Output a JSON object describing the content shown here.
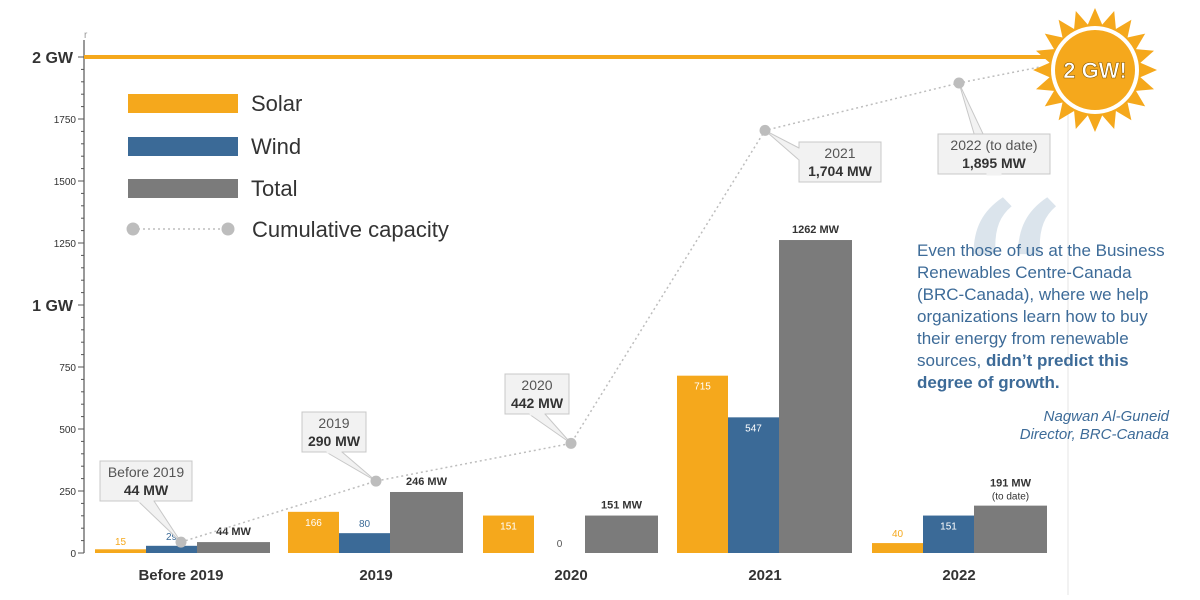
{
  "chart_data": {
    "type": "bar",
    "categories": [
      "Before 2019",
      "2019",
      "2020",
      "2021",
      "2022"
    ],
    "series": [
      {
        "name": "Solar",
        "color": "#f5a81c",
        "values": [
          15,
          166,
          151,
          715,
          40
        ]
      },
      {
        "name": "Wind",
        "color": "#3b6a97",
        "values": [
          29,
          80,
          0,
          547,
          151
        ]
      },
      {
        "name": "Total",
        "color": "#7b7b7b",
        "values": [
          44,
          246,
          151,
          1262,
          191
        ]
      }
    ],
    "bar_labels": {
      "Solar": [
        "15",
        "166",
        "151",
        "715",
        "40"
      ],
      "Wind": [
        "29",
        "80",
        "0",
        "547",
        "151"
      ],
      "Total": [
        "44 MW",
        "246 MW",
        "151 MW",
        "1262 MW",
        "191 MW"
      ]
    },
    "total_note_2022": "(to date)",
    "cumulative": {
      "name": "Cumulative capacity",
      "color": "#bdbdbd",
      "values": [
        44,
        290,
        442,
        1704,
        1895
      ],
      "callouts": [
        {
          "line1": "Before 2019",
          "line2": "44 MW"
        },
        {
          "line1": "2019",
          "line2": "290 MW"
        },
        {
          "line1": "2020",
          "line2": "442 MW"
        },
        {
          "line1": "2021",
          "line2": "1,704 MW"
        },
        {
          "line1": "2022 (to date)",
          "line2": "1,895 MW"
        }
      ]
    },
    "yticks": [
      0,
      250,
      500,
      750,
      1250,
      1500,
      1750
    ],
    "ytick_labels": [
      "0",
      "250",
      "500",
      "750",
      "1250",
      "1500",
      "1750"
    ],
    "gw_labels": [
      {
        "value": 1000,
        "label": "1 GW"
      },
      {
        "value": 2000,
        "label": "2 GW"
      }
    ],
    "target_line": {
      "value": 2000,
      "color": "#f5a81c"
    },
    "ylim": [
      0,
      2000
    ],
    "legend": {
      "placement": "top-left",
      "entries": [
        "Solar",
        "Wind",
        "Total",
        "Cumulative capacity"
      ]
    },
    "burst": {
      "label": "2 GW!",
      "color": "#f5a81c"
    },
    "axis_top_mark": "r",
    "grid": false
  },
  "quote": {
    "mark": "“",
    "text_plain": "Even those of us at the Business Renewables Centre-Canada (BRC-Canada), where we help organizations learn how to buy their energy from renewable sources, ",
    "text_bold": "didn’t predict this degree of growth.",
    "author": "Nagwan Al-Guneid",
    "role": "Director, BRC-Canada"
  }
}
